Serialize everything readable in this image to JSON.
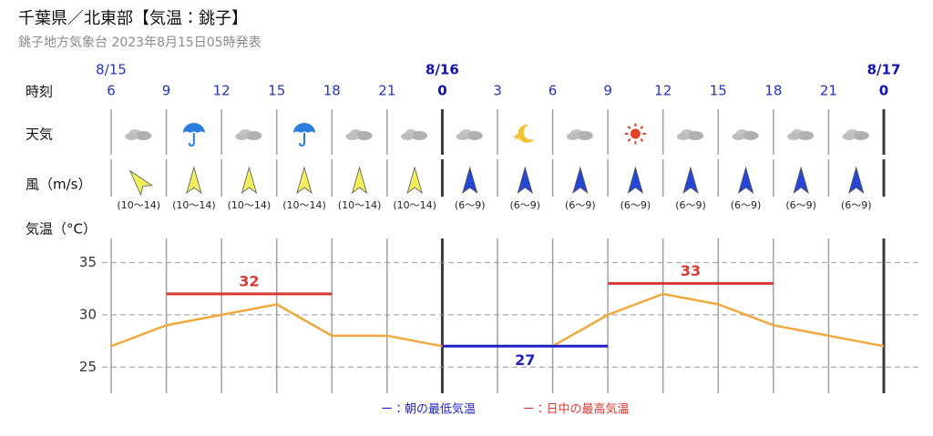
{
  "header": {
    "title": "千葉県／北東部【気温：銚子】",
    "subtitle": "銚子地方気象台 2023年8月15日05時発表"
  },
  "chart_data": {
    "type": "line",
    "row_labels": [
      "時刻",
      "天気",
      "風（m/s）",
      "気温（°C）"
    ],
    "categories": [
      "6",
      "9",
      "12",
      "15",
      "18",
      "21",
      "0",
      "3",
      "6",
      "9",
      "12",
      "15",
      "18",
      "21",
      "0"
    ],
    "dates": [
      "8/15",
      null,
      null,
      null,
      null,
      null,
      "8/16",
      null,
      null,
      null,
      null,
      null,
      null,
      null,
      "8/17"
    ],
    "weather": [
      "cloudy",
      "rain",
      "cloudy",
      "rain",
      "cloudy",
      "cloudy",
      "cloudy",
      "moon",
      "cloudy",
      "sun",
      "cloudy",
      "cloudy",
      "cloudy",
      "cloudy"
    ],
    "wind": {
      "ranges": [
        "(10～14)",
        "(10～14)",
        "(10～14)",
        "(10～14)",
        "(10～14)",
        "(10～14)",
        "(6～9)",
        "(6～9)",
        "(6～9)",
        "(6～9)",
        "(6～9)",
        "(6～9)",
        "(6～9)",
        "(6～9)"
      ],
      "directions": [
        -40,
        0,
        0,
        0,
        0,
        0,
        0,
        0,
        0,
        0,
        0,
        0,
        0,
        0
      ],
      "colors": [
        "#f2f05a",
        "#f2f05a",
        "#f2f05a",
        "#f2f05a",
        "#f2f05a",
        "#f2f05a",
        "#2546d6",
        "#2546d6",
        "#2546d6",
        "#2546d6",
        "#2546d6",
        "#2546d6",
        "#2546d6",
        "#2546d6"
      ]
    },
    "series": [
      {
        "color": "#f0a83e",
        "values": [
          27,
          29,
          30,
          31,
          28,
          28,
          27,
          27,
          27,
          30,
          32,
          31,
          29,
          28,
          27
        ]
      },
      {
        "name": "ー：朝の最低気温",
        "color": "#1f1fc4",
        "label_position": "below",
        "values": [
          null,
          null,
          null,
          null,
          null,
          null,
          27,
          27,
          27,
          27,
          null,
          null,
          null,
          null,
          null
        ]
      },
      {
        "name": "ー：日中の最高気温",
        "color": "#d83a32",
        "label_position": "above",
        "values": [
          null,
          32,
          32,
          32,
          32,
          null,
          null,
          null,
          null,
          33,
          33,
          33,
          33,
          null,
          null
        ]
      }
    ],
    "ylim": [
      22.5,
      37.3
    ],
    "yticks": [
      25,
      30,
      35
    ],
    "grid": true
  }
}
